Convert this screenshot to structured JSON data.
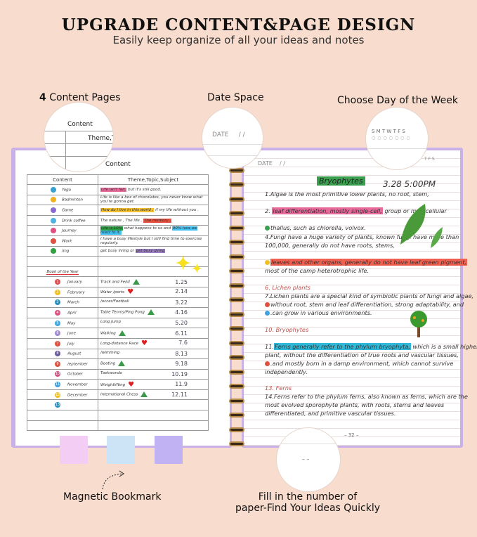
{
  "header": {
    "title": "UPGRADE CONTENT&PAGE DESIGN",
    "subtitle": "Easily keep organize of all your ideas and notes"
  },
  "features": {
    "content_pages_num": "4",
    "content_pages": " Content Pages",
    "date_space": "Date Space",
    "day_of_week": "Choose Day of the Week",
    "bookmark": "Magnetic Bookmark",
    "page_number_l1": "Fill in the number of",
    "page_number_l2": "paper-Find Your Ideas Quickly"
  },
  "magnifiers": {
    "content": "Content",
    "theme": "Theme,T",
    "date": "DATE",
    "date_slashes": "/      /",
    "days": "S  M  T  W  T  F  S"
  },
  "left_page": {
    "title": "Content",
    "col1": "Content",
    "col2": "Theme,Topic,Subject",
    "rows": [
      {
        "label": "Yoga",
        "hl": "Life isn't fair,",
        "text": " but it's still good.",
        "icon_color": "#3aa0d0",
        "hl_color": "#e86a9a"
      },
      {
        "label": "Badminton",
        "hl": "",
        "text": "Life is like a box of chocolates, you never know what you're gonna get.",
        "icon_color": "#f0b020",
        "hl_color": ""
      },
      {
        "label": "Game",
        "hl": "How do I live in this world ,",
        "text": " if my life without you .",
        "icon_color": "#8a6ad0",
        "hl_color": "#f5c030"
      },
      {
        "label": "Drink coffee",
        "hl": "",
        "text": "The nature , The life , ",
        "hl2": "The memory ,",
        "icon_color": "#50b0e0",
        "hl_color": "#e85040"
      },
      {
        "label": "Journey",
        "hl": "Life is 10%",
        "text": " what happens to us and ",
        "hl2": "90% how we react to it.",
        "icon_color": "#e05080",
        "hl_color": "#2a9a40",
        "hl2_color": "#40c0f0"
      },
      {
        "label": "Work",
        "hl": "",
        "text": "I have a busy lifestyle but I still find time to exercise regularly.",
        "icon_color": "#e05040",
        "hl_color": ""
      },
      {
        "label": "/ing",
        "hl": "",
        "text": "get busy living or ",
        "hl2": "get busy dying",
        "icon_color": "#30a040",
        "hl_color": "",
        "hl2_color": "#9a80c0"
      }
    ],
    "book_of_year": "Book of the Year",
    "months": [
      {
        "n": "1",
        "m": "January",
        "s": "Track and Feild",
        "mark": "triangle",
        "d": "1.25",
        "c": "#e05050"
      },
      {
        "n": "2",
        "m": "February",
        "s": "Water /ports",
        "mark": "heart",
        "d": "2.14",
        "c": "#f0c020"
      },
      {
        "n": "3",
        "m": "March",
        "s": "/occer/Football",
        "mark": "",
        "d": "3.22",
        "c": "#2a90c0"
      },
      {
        "n": "4",
        "m": "April",
        "s": "Table Tennis/Ping Pong",
        "mark": "triangle",
        "d": "4.16",
        "c": "#e05080"
      },
      {
        "n": "5",
        "m": "May",
        "s": "Long Jump",
        "mark": "",
        "d": "5.20",
        "c": "#40a8e0"
      },
      {
        "n": "6",
        "m": "June",
        "s": "Walking",
        "mark": "triangle",
        "d": "6.11",
        "c": "#a08ad0"
      },
      {
        "n": "7",
        "m": "July",
        "s": "Long-distance Race",
        "mark": "heart",
        "d": "7.6",
        "c": "#e05040"
      },
      {
        "n": "8",
        "m": "August",
        "s": "/wimming",
        "mark": "",
        "d": "8.13",
        "c": "#6a5a9a"
      },
      {
        "n": "9",
        "m": "/eptember",
        "s": "Boating",
        "mark": "triangle",
        "d": "9.18",
        "c": "#e05040"
      },
      {
        "n": "10",
        "m": "October",
        "s": "Taekwondo",
        "mark": "",
        "d": "10.19",
        "c": "#d05080"
      },
      {
        "n": "11",
        "m": "November",
        "s": "Weightlifting",
        "mark": "heart",
        "d": "11.9",
        "c": "#40a0e0"
      },
      {
        "n": "12",
        "m": "December",
        "s": "International Chess",
        "mark": "triangle",
        "d": "12.11",
        "c": "#f0c020"
      },
      {
        "n": "13",
        "m": "",
        "s": "",
        "mark": "",
        "d": "",
        "c": "#2a90c0"
      }
    ]
  },
  "right_page": {
    "date_label": "DATE",
    "date_slashes": "/      /",
    "days": "T  F  S",
    "heading": "Bryophytes",
    "time": "3.28 5:00PM",
    "l1": "1.Algae is the most primitive lower plants, no root, stem,",
    "l2a": "2. ",
    "l2h": "leaf differentiation, mostly single-cell,",
    "l2b": " group or multicellular",
    "l3": "thallus, such as chlorella, volvox.",
    "l4": "4.Fungi have a huge variety of plants, known fungi have more than",
    "l4b": "100,000, generally do not have roots, stems,",
    "l5h": "leaves and other organs, generally do not have leaf green pigment,",
    "l5b": "most of the camp heterotrophic life.",
    "l6": "6. Lichen plants",
    "l7": "7.Lichen plants are a special kind of symbiotic plants of fungi and algae,",
    "l8": "without root, stem and leaf differentiation, strong adaptability, and",
    "l9": ".can grow in various environments.",
    "l10": "10. Bryophytes",
    "l11a": "11.",
    "l11h": "Ferns generally refer to the phylum bryophyta,",
    "l11b": " which is a small higher",
    "l11c": "plant, without the differentiation of true roots and vascular tissues,",
    "l12": ".and mostly born in a damp environment, which cannot survive",
    "l12b": "independently.",
    "l13": "13. Ferns",
    "l14": "14.Ferns refer to the phylum ferns, also known as ferns, which are the",
    "l14b": "most evolved sporophyte plants, with roots, stems and leaves",
    "l14c": "differentiated, and primitive vascular tissues.",
    "page_no": "– 32 –",
    "blank_page_no": "–  –"
  },
  "colors": {
    "background": "#f8dccd",
    "cover": "#c9b0e6",
    "tab1": "#f3cdf3",
    "tab2": "#cde4f6",
    "tab3": "#c1b2f4",
    "heading_green": "#3aa050",
    "pink_hl": "#e86a9a",
    "red_hl": "#f06050",
    "blue_hl": "#30b8d8"
  }
}
